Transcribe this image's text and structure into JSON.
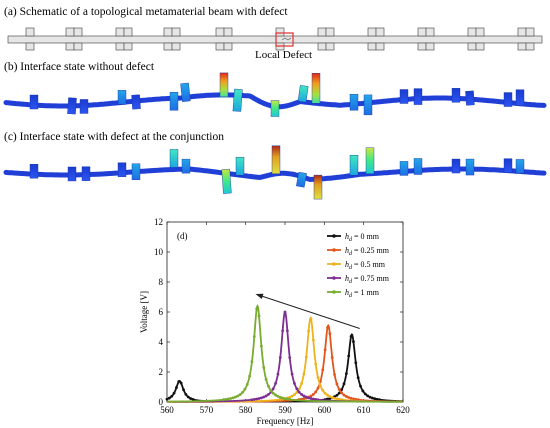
{
  "panel_a": {
    "caption": "(a) Schematic of a topological metamaterial beam with defect",
    "defect_label": "Local Defect"
  },
  "panel_b": {
    "caption": "(b) Interface state without defect"
  },
  "panel_c": {
    "caption": "(c) Interface state with defect at the conjunction"
  },
  "colors": {
    "beam": "#1f3fd6",
    "beam_light": "#2a5ef0",
    "schematic_fill": "#e6e6e6",
    "defect_box": "#e03030"
  },
  "chart_data": {
    "type": "line",
    "panel_label": "(d)",
    "xlabel": "Frequency [Hz]",
    "ylabel": "Voltage [V]",
    "xlim": [
      560,
      620
    ],
    "ylim": [
      0,
      12
    ],
    "xticks": [
      560,
      570,
      580,
      590,
      600,
      610,
      620
    ],
    "yticks": [
      0,
      2,
      4,
      6,
      8,
      10,
      12
    ],
    "legend_position": "top-right",
    "series": [
      {
        "name": "h_d = 0 mm",
        "sym": "h",
        "sub": "d",
        "rest": " = 0 mm",
        "color": "#111111",
        "peaks": [
          [
            563.2,
            1.4
          ],
          [
            607.0,
            4.5
          ]
        ]
      },
      {
        "name": "h_d = 0.25 mm",
        "sym": "h",
        "sub": "d",
        "rest": " = 0.25 mm",
        "color": "#e2561d",
        "peaks": [
          [
            601.0,
            5.1
          ]
        ]
      },
      {
        "name": "h_d = 0.5 mm",
        "sym": "h",
        "sub": "d",
        "rest": " = 0.5 mm",
        "color": "#eeb21d",
        "peaks": [
          [
            596.5,
            5.6
          ]
        ]
      },
      {
        "name": "h_d = 0.75 mm",
        "sym": "h",
        "sub": "d",
        "rest": " = 0.75 mm",
        "color": "#7d2e91",
        "peaks": [
          [
            590.0,
            6.0
          ]
        ]
      },
      {
        "name": "h_d = 1 mm",
        "sym": "h",
        "sub": "d",
        "rest": " = 1 mm",
        "color": "#77ac30",
        "peaks": [
          [
            583.0,
            6.4
          ]
        ]
      }
    ],
    "arrow": {
      "from": [
        609,
        4.9
      ],
      "to": [
        582.5,
        7.2
      ]
    }
  }
}
